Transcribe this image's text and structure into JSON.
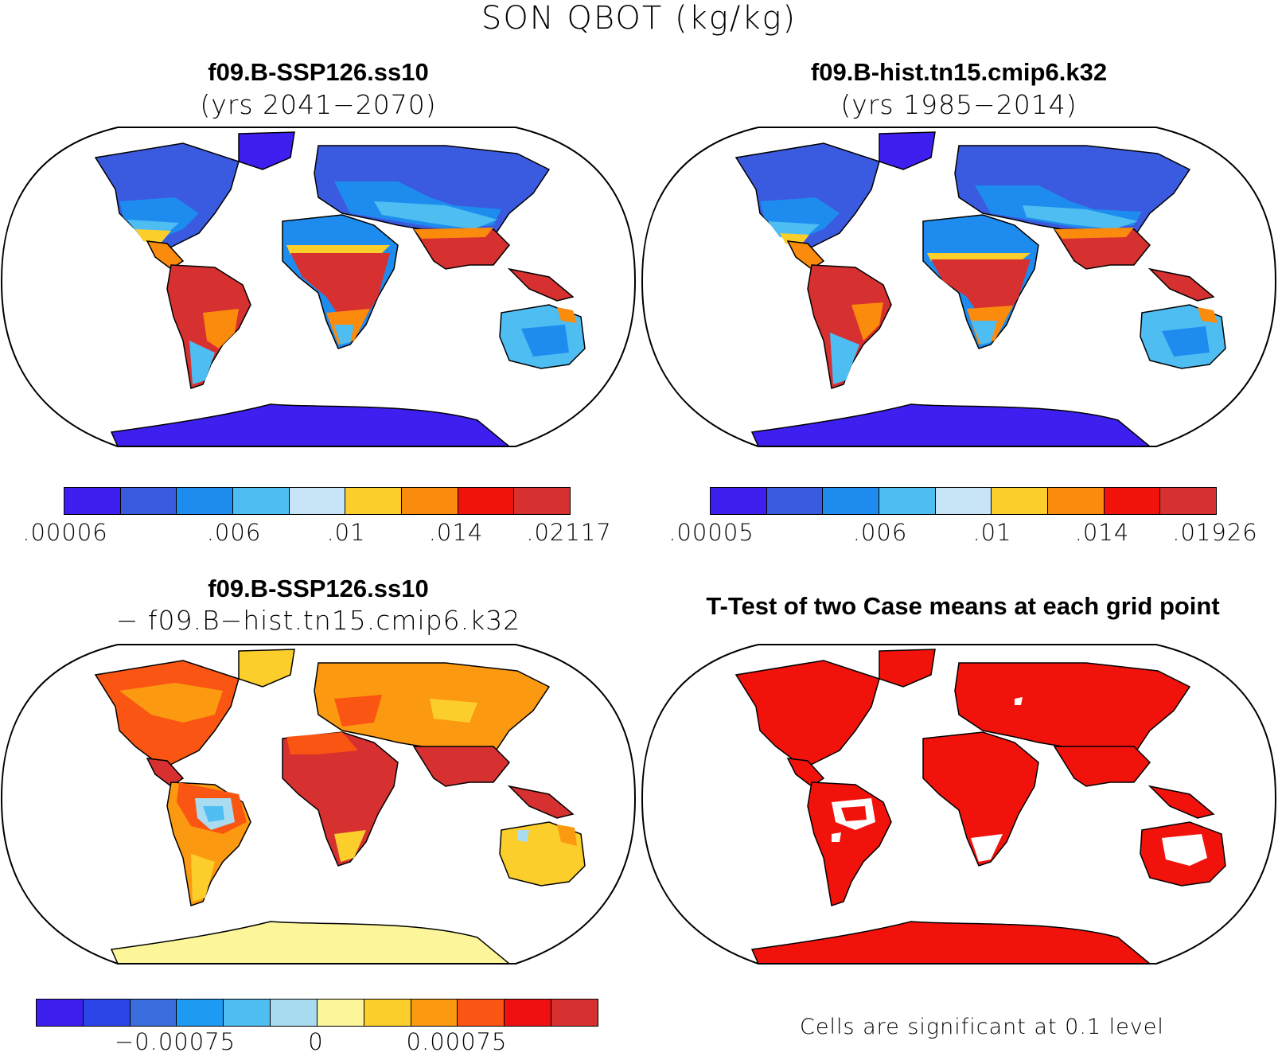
{
  "figure_title": "SON QBOT (kg/kg)",
  "panels": [
    {
      "id": "tl",
      "title": "f09.B-SSP126.ss10",
      "subtitle": "(yrs 2041−2070)",
      "colorbar": {
        "colors": [
          "#3D1FF0",
          "#3A5ADF",
          "#1E8CEF",
          "#4DBDF2",
          "#C6E4F6",
          "#FCCE2C",
          "#FB8B0C",
          "#F2120C",
          "#D63030"
        ],
        "tick_labels": [
          ".00006",
          ".006",
          ".01",
          ".014",
          ".02117"
        ]
      }
    },
    {
      "id": "tr",
      "title": "f09.B-hist.tn15.cmip6.k32",
      "subtitle": "(yrs 1985−2014)",
      "colorbar": {
        "colors": [
          "#3D1FF0",
          "#3A5ADF",
          "#1E8CEF",
          "#4DBDF2",
          "#C6E4F6",
          "#FCCE2C",
          "#FB8B0C",
          "#F2120C",
          "#D63030"
        ],
        "tick_labels": [
          ".00005",
          ".006",
          ".01",
          ".014",
          ".01926"
        ]
      }
    },
    {
      "id": "bl",
      "title": "f09.B-SSP126.ss10",
      "subtitle": "− f09.B−hist.tn15.cmip6.k32",
      "colorbar": {
        "colors": [
          "#3D1FF0",
          "#2B45E6",
          "#3A6EDD",
          "#1E9AF2",
          "#50BEF2",
          "#A9DCF0",
          "#FCF59A",
          "#FCCE2C",
          "#FB9A10",
          "#FA5512",
          "#EE1010",
          "#D63030"
        ],
        "tick_labels": [
          "−0.00075",
          "0",
          "0.00075"
        ]
      }
    },
    {
      "id": "br",
      "title": "T-Test of two Case means at each grid point",
      "note": "Cells are significant at 0.1 level"
    }
  ],
  "map_colors": {
    "ocean": "#ffffff",
    "significant": "#F2120C"
  }
}
